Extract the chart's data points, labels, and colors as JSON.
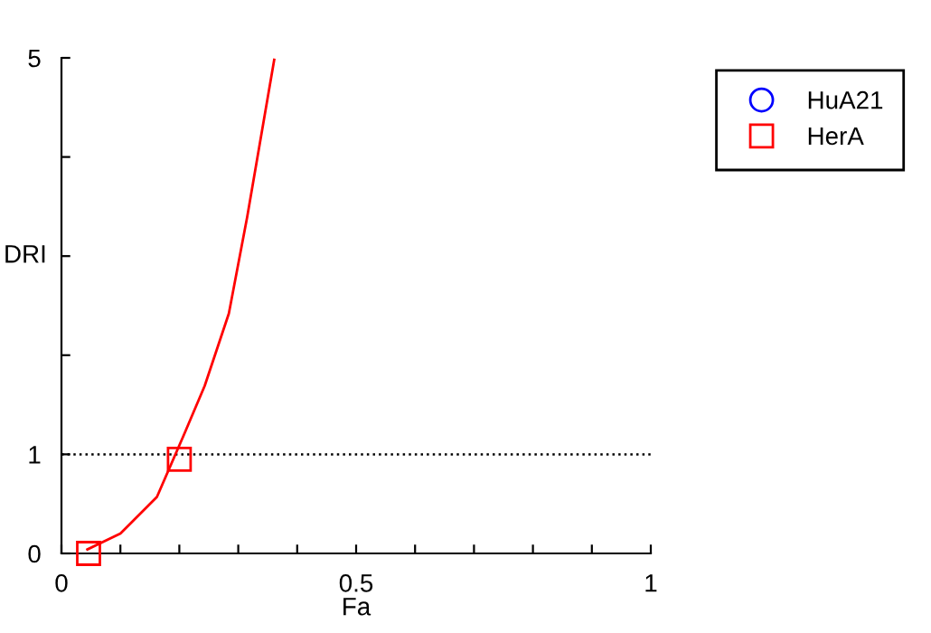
{
  "chart_data": {
    "type": "scatter",
    "xlabel": "Fa",
    "ylabel": "DRI",
    "xlim": [
      0,
      1
    ],
    "ylim": [
      0,
      5
    ],
    "xticks": [
      0,
      {
        "value": 0.1,
        "label": null
      },
      {
        "value": 0.2,
        "label": null
      },
      {
        "value": 0.3,
        "label": null
      },
      {
        "value": 0.4,
        "label": null
      },
      0.5,
      {
        "value": 0.6,
        "label": null
      },
      {
        "value": 0.7,
        "label": null
      },
      {
        "value": 0.8,
        "label": null
      },
      {
        "value": 0.9,
        "label": null
      },
      1
    ],
    "yticks": [
      0,
      1,
      {
        "value": 2,
        "label": null
      },
      {
        "value": 3,
        "label": null
      },
      {
        "value": 4,
        "label": null
      },
      5
    ],
    "series": [
      {
        "name": "HuA21",
        "type": "scatter",
        "marker": "circle",
        "color": "#0000ff"
      },
      {
        "name": "HerA",
        "marker": "square",
        "color": "#ff0000",
        "x": [
          0.046,
          0.2
        ],
        "values": [
          0,
          0.95
        ]
      },
      {
        "type": "line",
        "marker": "none",
        "color": "#ff0000",
        "x": [
          0.044,
          0.1,
          0.162,
          0.208,
          0.243,
          0.284,
          0.315,
          0.361
        ],
        "values": [
          0.04,
          0.2,
          0.57,
          1.2,
          1.69,
          2.42,
          3.39,
          4.98
        ]
      }
    ],
    "ref_lines": [
      {
        "axis": "y",
        "value": 1,
        "label": null,
        "color": "#000000",
        "line_style": "dotted"
      }
    ],
    "legend": "top right"
  }
}
